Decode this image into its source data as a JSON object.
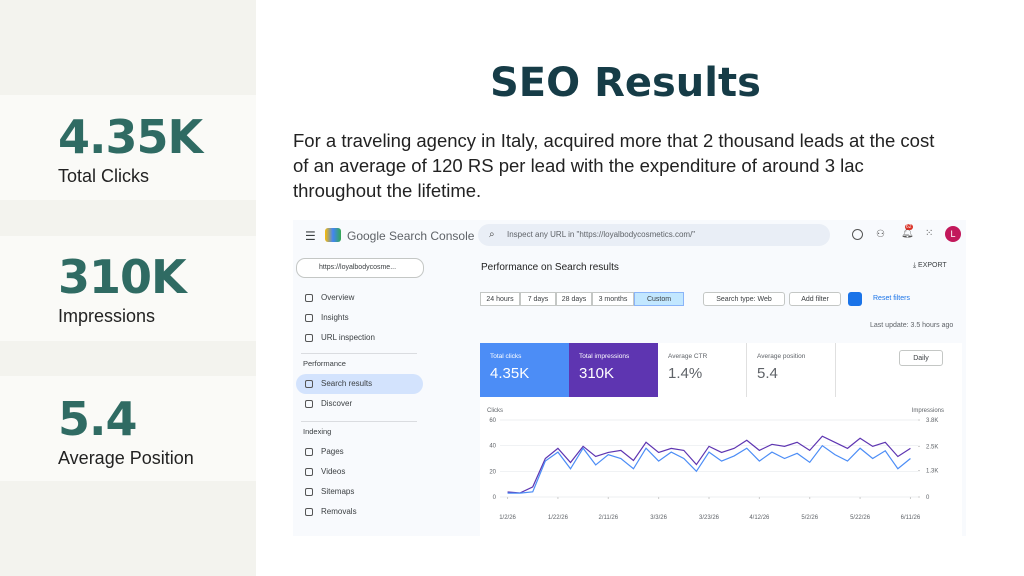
{
  "sidebar": {
    "stats": [
      {
        "value": "4.35K",
        "label": "Total Clicks"
      },
      {
        "value": "310K",
        "label": "Impressions"
      },
      {
        "value": "5.4",
        "label": "Average Position"
      }
    ]
  },
  "title": "SEO Results",
  "description": "For a traveling agency in Italy, acquired more that 2 thousand leads at the cost of an average of 120 RS per lead with the expenditure of around 3 lac throughout the lifetime.",
  "screenshot": {
    "app_name": "Google Search Console",
    "search_placeholder": "Inspect any URL in \"https://loyalbodycosmetics.com/\"",
    "notification_count": "62",
    "avatar": "L",
    "property": "https://loyalbodycosme...",
    "nav_top": [
      "Overview",
      "Insights",
      "URL inspection"
    ],
    "nav_sections": [
      {
        "title": "Performance",
        "items": [
          "Search results",
          "Discover"
        ]
      },
      {
        "title": "Indexing",
        "items": [
          "Pages",
          "Videos",
          "Sitemaps",
          "Removals"
        ]
      }
    ],
    "page_title": "Performance on Search results",
    "export": "EXPORT",
    "date_filters": [
      "24 hours",
      "7 days",
      "28 days",
      "3 months",
      "Custom"
    ],
    "search_type": "Search type: Web",
    "add_filter": "Add filter",
    "reset_filters": "Reset filters",
    "last_update": "Last update: 3.5 hours ago",
    "metrics": [
      {
        "label": "Total clicks",
        "value": "4.35K"
      },
      {
        "label": "Total impressions",
        "value": "310K"
      },
      {
        "label": "Average CTR",
        "value": "1.4%"
      },
      {
        "label": "Average position",
        "value": "5.4"
      }
    ],
    "granularity": "Daily",
    "chart": {
      "type": "line",
      "y_label": "Clicks",
      "y2_label": "Impressions",
      "x": [
        0,
        5,
        10,
        15,
        20,
        25,
        30,
        35,
        40,
        45,
        50,
        55,
        60,
        65,
        70,
        75,
        80,
        85,
        90,
        95,
        100,
        105,
        110,
        115,
        120,
        125,
        130,
        135,
        140,
        145,
        150,
        155,
        160
      ],
      "xlim": [
        -3,
        163
      ],
      "xticks": [
        {
          "value": 0,
          "label": "1/2/26"
        },
        {
          "value": 20,
          "label": "1/22/26"
        },
        {
          "value": 40,
          "label": "2/11/26"
        },
        {
          "value": 60,
          "label": "3/3/26"
        },
        {
          "value": 80,
          "label": "3/23/26"
        },
        {
          "value": 100,
          "label": "4/12/26"
        },
        {
          "value": 120,
          "label": "5/2/26"
        },
        {
          "value": 140,
          "label": "5/22/26"
        },
        {
          "value": 160,
          "label": "6/11/26"
        }
      ],
      "ylim": [
        0,
        60
      ],
      "yticks": [
        0,
        20,
        40,
        60
      ],
      "y2lim": [
        0,
        3800
      ],
      "y2ticks": [
        0,
        {
          "value": 1300,
          "label": "1.3K"
        },
        {
          "value": 2500,
          "label": "2.5K"
        },
        {
          "value": 3800,
          "label": "3.8K"
        }
      ],
      "series": [
        {
          "name": "Clicks",
          "color": "#4c8df6",
          "values": [
            3,
            3,
            4,
            28,
            35,
            22,
            38,
            25,
            33,
            30,
            22,
            38,
            28,
            35,
            30,
            20,
            35,
            28,
            32,
            38,
            28,
            35,
            30,
            34,
            27,
            40,
            33,
            28,
            38,
            30,
            36,
            22,
            30
          ]
        },
        {
          "name": "Impressions",
          "color": "#5e35b1",
          "axis": "y2",
          "values": [
            250,
            200,
            500,
            1900,
            2400,
            1700,
            2500,
            2000,
            2200,
            2300,
            1800,
            2700,
            2200,
            2400,
            2300,
            1600,
            2500,
            2200,
            2400,
            2800,
            2300,
            2600,
            2500,
            2700,
            2300,
            3000,
            2700,
            2400,
            2900,
            2500,
            2700,
            2000,
            2400
          ]
        }
      ]
    }
  }
}
